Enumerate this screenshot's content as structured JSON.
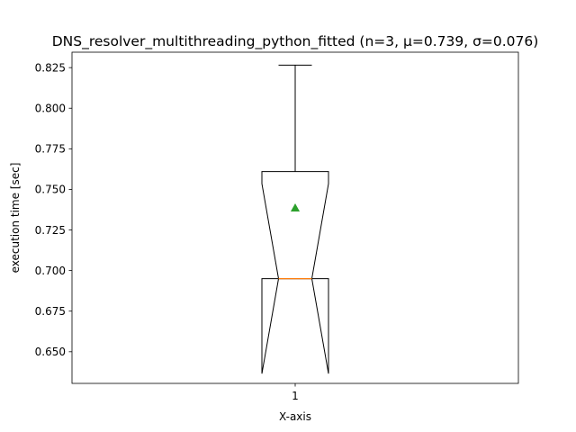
{
  "chart_data": {
    "type": "boxplot",
    "title": "DNS_resolver_multithreading_python_fitted (n=3, μ=0.739, σ=0.076)",
    "xlabel": "X-axis",
    "ylabel": "execution time [sec]",
    "categories": [
      "1"
    ],
    "ylim": [
      0.6305,
      0.8345
    ],
    "yticks": [
      0.65,
      0.675,
      0.7,
      0.725,
      0.75,
      0.775,
      0.8,
      0.825
    ],
    "ytick_labels": [
      "0.650",
      "0.675",
      "0.700",
      "0.725",
      "0.750",
      "0.775",
      "0.800",
      "0.825"
    ],
    "grid": false,
    "notched": true,
    "box": {
      "category": "1",
      "whisker_low": 0.695,
      "q1": 0.695,
      "median": 0.695,
      "q3": 0.761,
      "whisker_high": 0.8265,
      "notch_low": 0.6365,
      "notch_high": 0.7535,
      "mean": 0.7385
    },
    "colors": {
      "box": "#000000",
      "median": "#ff7f0e",
      "mean": "#2ca02c"
    }
  }
}
